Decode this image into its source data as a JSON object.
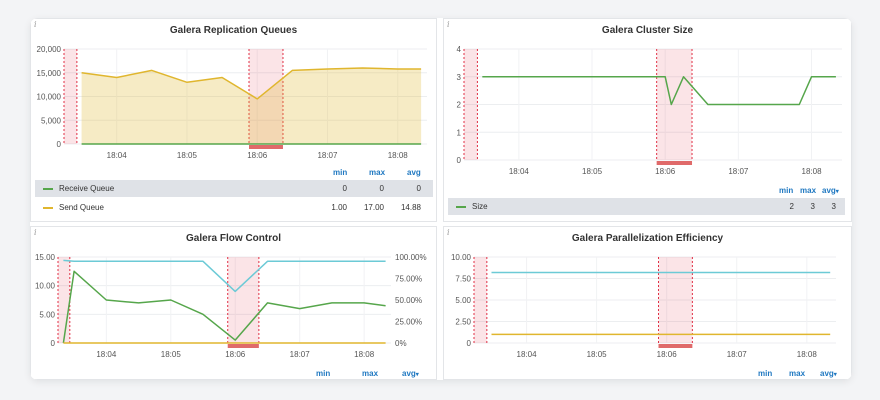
{
  "colors": {
    "green": "#56a64b",
    "yellow": "#e0b62e",
    "cyan": "#6ccad6",
    "red": "#e02f44",
    "legend": "#1f78c1"
  },
  "panels": {
    "replication": {
      "title": "Galera Replication Queues",
      "info_icon": "i",
      "y_ticks": [
        "20,000",
        "15,000",
        "10,000",
        "5,000",
        "0"
      ],
      "x_ticks": [
        "18:04",
        "18:05",
        "18:06",
        "18:07",
        "18:08"
      ],
      "legend_header": {
        "min": "min",
        "max": "max",
        "avg": "avg"
      },
      "series": [
        {
          "name": "Receive Queue",
          "min": "0",
          "max": "0",
          "avg": "0"
        },
        {
          "name": "Send Queue",
          "min": "1.00",
          "max": "17.00",
          "avg": "14.88"
        }
      ]
    },
    "cluster_size": {
      "title": "Galera Cluster Size",
      "info_icon": "i",
      "y_ticks": [
        "4",
        "3",
        "2",
        "1",
        "0"
      ],
      "x_ticks": [
        "18:04",
        "18:05",
        "18:06",
        "18:07",
        "18:08"
      ],
      "legend_header": {
        "min": "min",
        "max": "max",
        "avg": "avg"
      },
      "series": [
        {
          "name": "Size",
          "min": "2",
          "max": "3",
          "avg": "3"
        }
      ]
    },
    "flow_control": {
      "title": "Galera Flow Control",
      "info_icon": "i",
      "y_ticks": [
        "15.00",
        "10.00",
        "5.00",
        "0"
      ],
      "y2_ticks": [
        "100.00%",
        "75.00%",
        "50.00%",
        "25.00%",
        "0%"
      ],
      "x_ticks": [
        "18:04",
        "18:05",
        "18:06",
        "18:07",
        "18:08"
      ],
      "legend_header": {
        "min": "min",
        "max": "max",
        "avg": "avg"
      }
    },
    "parallelization": {
      "title": "Galera Parallelization Efficiency",
      "info_icon": "i",
      "y_ticks": [
        "10.00",
        "7.50",
        "5.00",
        "2.50",
        "0"
      ],
      "x_ticks": [
        "18:04",
        "18:05",
        "18:06",
        "18:07",
        "18:08"
      ],
      "legend_header": {
        "min": "min",
        "max": "max",
        "avg": "avg"
      }
    }
  },
  "chart_data": [
    {
      "type": "area",
      "title": "Galera Replication Queues",
      "x": [
        "18:03:30",
        "18:04",
        "18:04:30",
        "18:05",
        "18:05:30",
        "18:06",
        "18:06:30",
        "18:07",
        "18:07:30",
        "18:08",
        "18:08:20"
      ],
      "ylim": [
        0,
        20000
      ],
      "series": [
        {
          "name": "Receive Queue",
          "values": [
            0,
            0,
            0,
            0,
            0,
            0,
            0,
            0,
            0,
            0,
            0
          ]
        },
        {
          "name": "Send Queue",
          "values": [
            15000,
            14000,
            15500,
            13000,
            14000,
            9500,
            15500,
            15800,
            16000,
            15800,
            15800
          ]
        }
      ]
    },
    {
      "type": "line",
      "title": "Galera Cluster Size",
      "x": [
        "18:03:30",
        "18:06",
        "18:06:05",
        "18:06:15",
        "18:06:35",
        "18:07:50",
        "18:08",
        "18:08:20"
      ],
      "ylim": [
        0,
        4
      ],
      "series": [
        {
          "name": "Size",
          "values": [
            3,
            3,
            2,
            3,
            2,
            2,
            3,
            3
          ]
        }
      ]
    },
    {
      "type": "line",
      "title": "Galera Flow Control",
      "x": [
        "18:03:20",
        "18:03:30",
        "18:04",
        "18:04:30",
        "18:05",
        "18:05:30",
        "18:06",
        "18:06:30",
        "18:07",
        "18:07:30",
        "18:08",
        "18:08:20"
      ],
      "ylim": [
        0,
        15
      ],
      "y2lim": [
        0,
        100
      ],
      "series": [
        {
          "values": [
            0,
            12.5,
            7.5,
            7,
            7.5,
            5,
            0.5,
            7,
            6,
            7,
            7,
            6.5
          ]
        },
        {
          "values": [
            96,
            95,
            95,
            95,
            95,
            95,
            60,
            95,
            95,
            95,
            95,
            95
          ]
        },
        {
          "values": [
            0,
            0,
            0,
            0,
            0,
            0,
            0,
            0,
            0,
            0,
            0,
            0
          ]
        }
      ]
    },
    {
      "type": "line",
      "title": "Galera Parallelization Efficiency",
      "x": [
        "18:03:30",
        "18:08:20"
      ],
      "ylim": [
        0,
        10
      ],
      "series": [
        {
          "values": [
            8.2,
            8.2
          ]
        },
        {
          "values": [
            1,
            1
          ]
        }
      ]
    }
  ]
}
